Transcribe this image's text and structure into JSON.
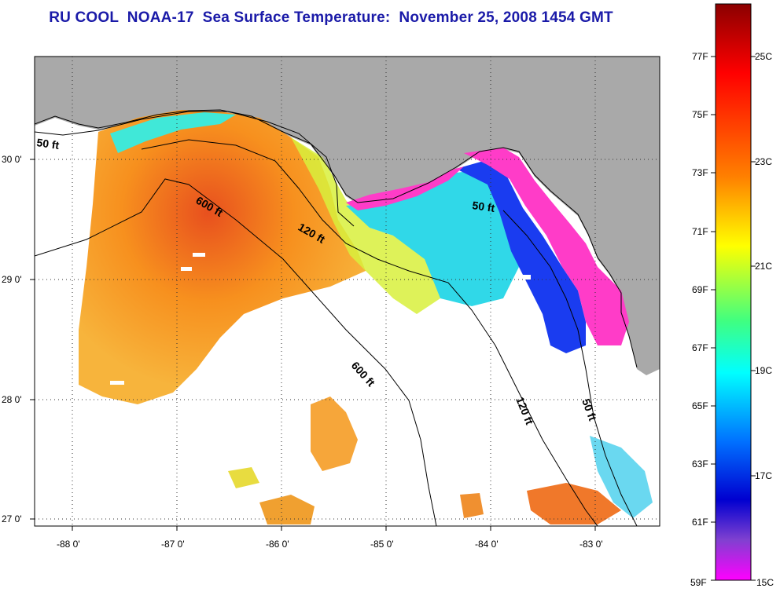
{
  "title": "RU COOL  NOAA-17  Sea Surface Temperature:  November 25, 2008 1454 GMT",
  "map": {
    "lon_range": [
      -88.3,
      -82.4
    ],
    "lat_range": [
      26.95,
      30.9
    ],
    "lon_ticks": [
      "-88 0'",
      "-87 0'",
      "-86 0'",
      "-85 0'",
      "-84 0'",
      "-83 0'"
    ],
    "lat_ticks": [
      "30 0'",
      "29 0'",
      "28 0'",
      "27 0'"
    ],
    "grid": true,
    "land_color": "#a9a9a9",
    "no_data_color": "#ffffff"
  },
  "contours": [
    {
      "label": "50 ft"
    },
    {
      "label": "600 ft"
    },
    {
      "label": "120 ft"
    },
    {
      "label": "50 ft"
    },
    {
      "label": "600 ft"
    },
    {
      "label": "120 ft"
    },
    {
      "label": "50 ft"
    }
  ],
  "colorbar": {
    "fahrenheit_labels": [
      "77F",
      "75F",
      "73F",
      "71F",
      "69F",
      "67F",
      "65F",
      "63F",
      "61F",
      "59F"
    ],
    "celsius_labels": [
      "25C",
      "23C",
      "21C",
      "19C",
      "17C",
      "15C"
    ],
    "colors": [
      "#8b0000",
      "#ff0000",
      "#ff8000",
      "#ffff00",
      "#00ff80",
      "#00ffff",
      "#0060ff",
      "#0000c0",
      "#8040c0",
      "#ff00ff"
    ]
  }
}
